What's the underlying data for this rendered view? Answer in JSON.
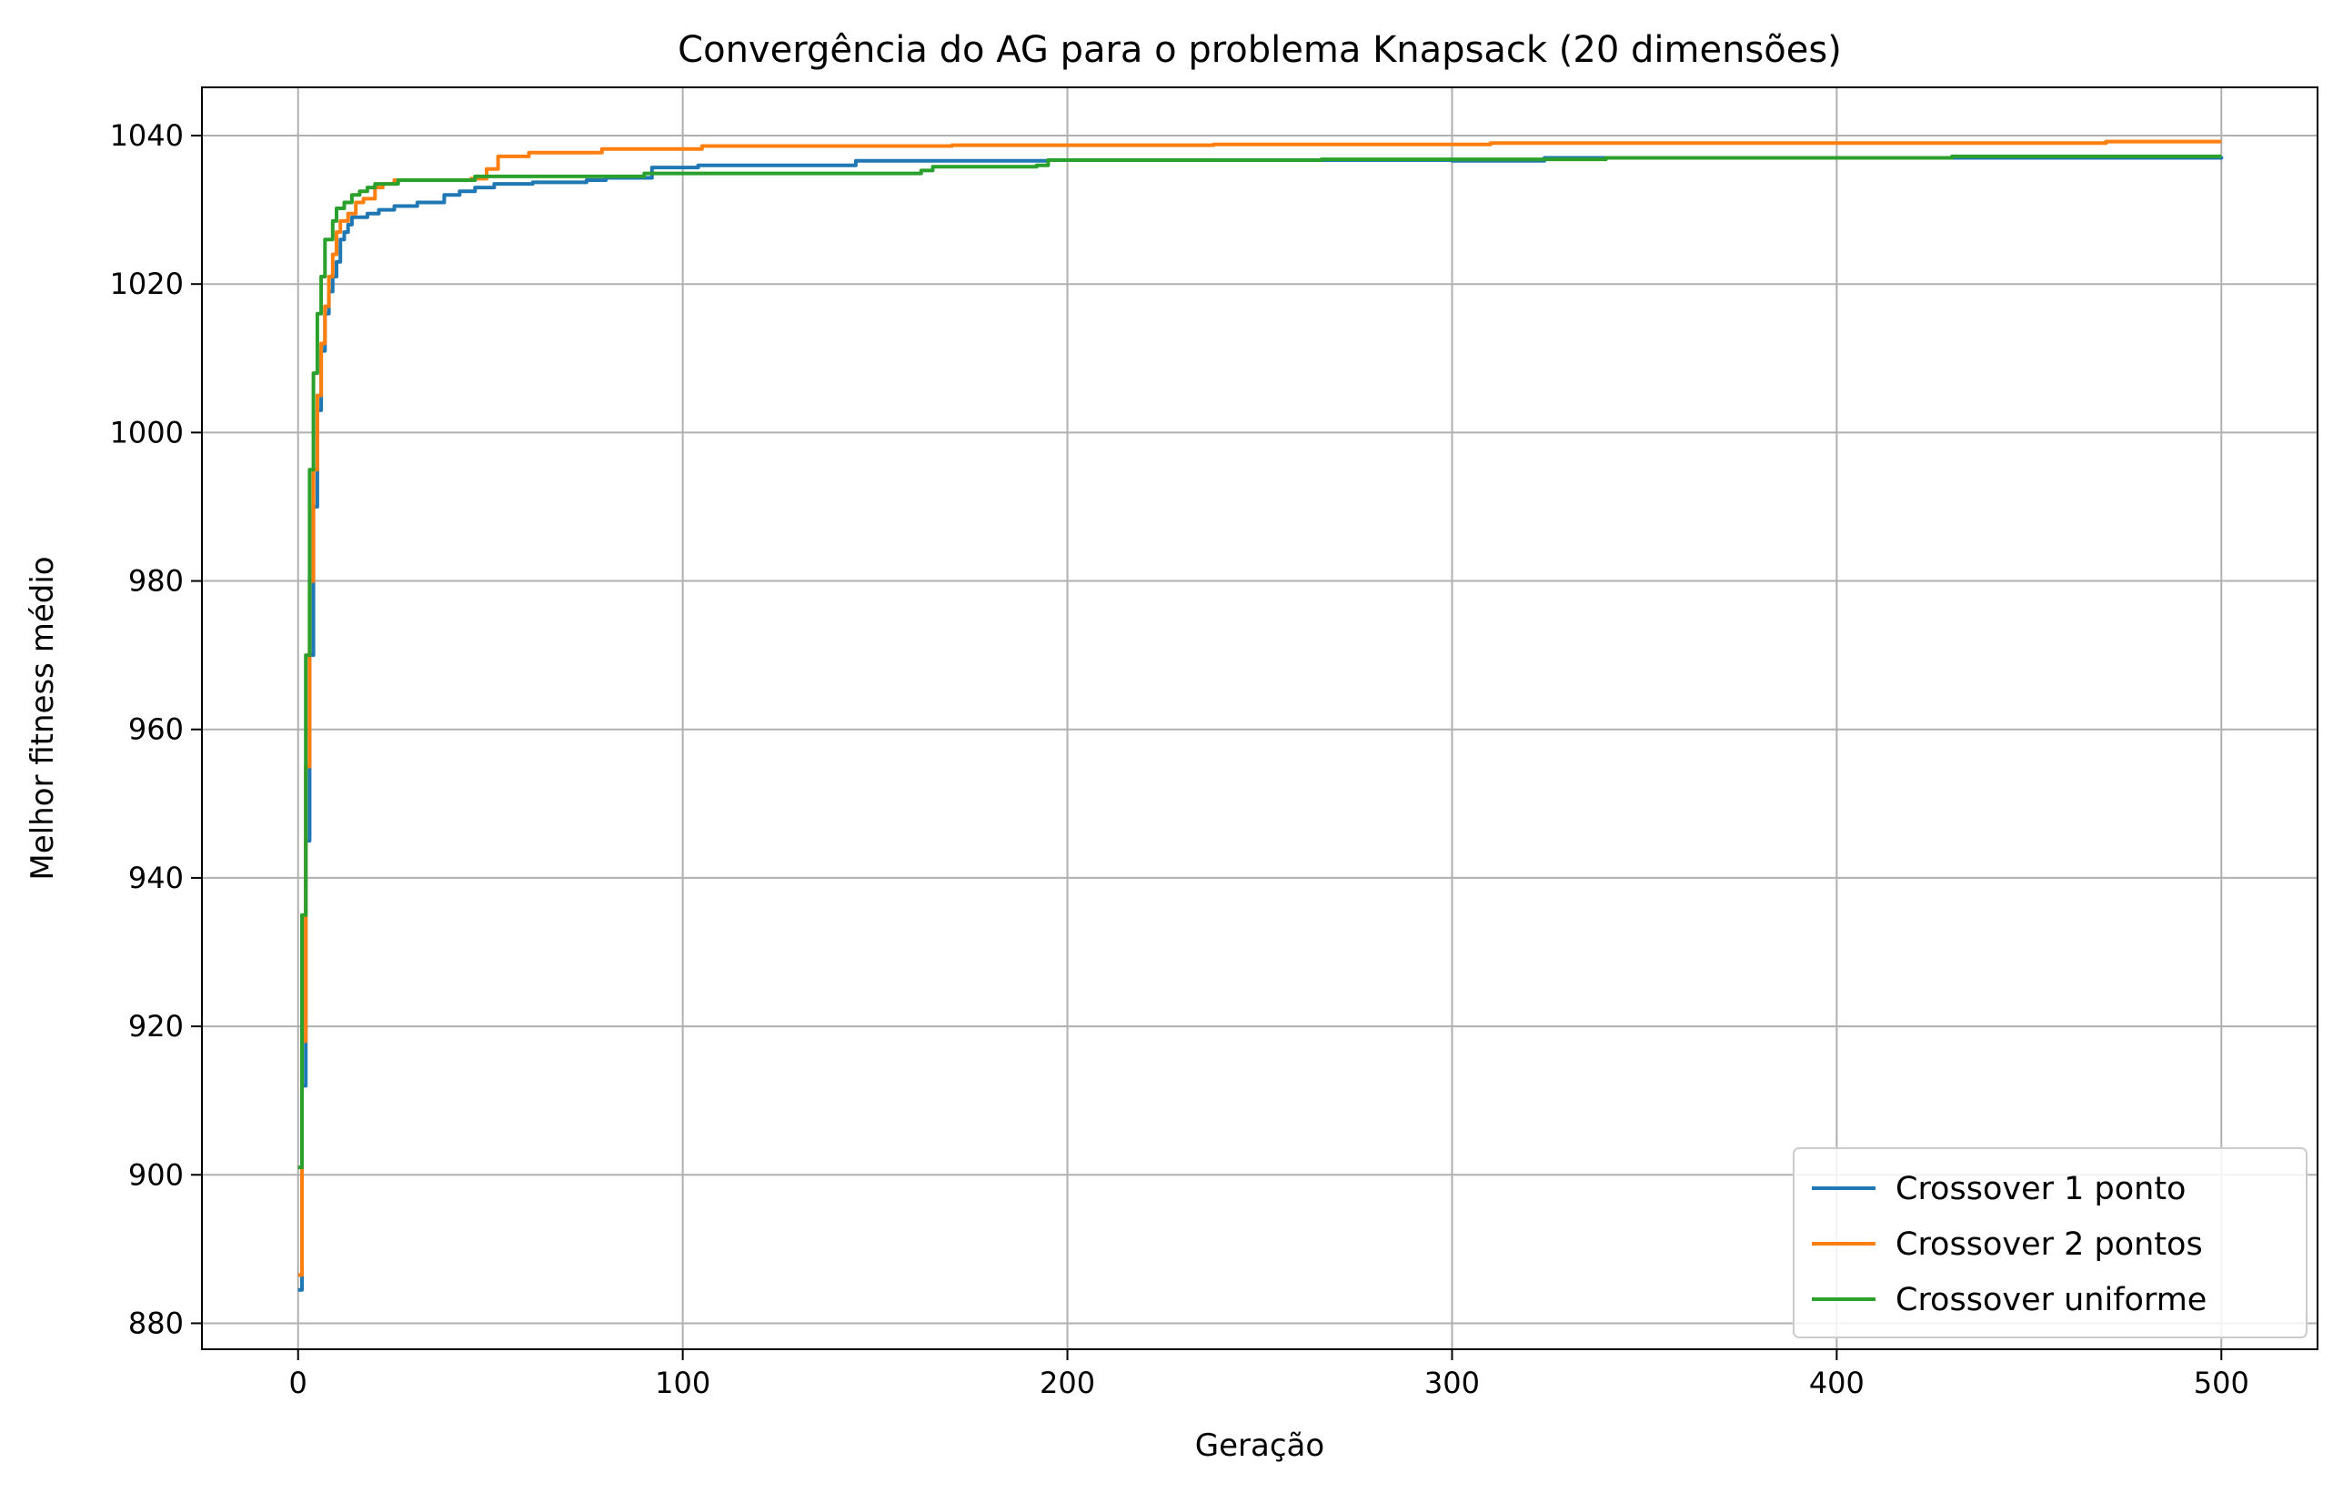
{
  "chart_data": {
    "type": "line",
    "title": "Convergência do AG para o problema Knapsack (20 dimensões)",
    "xlabel": "Geração",
    "ylabel": "Melhor fitness médio",
    "xlim": [
      -25,
      525
    ],
    "ylim": [
      876.5,
      1046.5
    ],
    "xticks": [
      0,
      100,
      200,
      300,
      400,
      500
    ],
    "yticks": [
      880,
      900,
      920,
      940,
      960,
      980,
      1000,
      1020,
      1040
    ],
    "grid": true,
    "legend_position": "bottom-right",
    "series": [
      {
        "name": "Crossover 1 ponto",
        "color": "#1f77b4",
        "points": [
          [
            0,
            884.5
          ],
          [
            1,
            912
          ],
          [
            2,
            945
          ],
          [
            3,
            970
          ],
          [
            4,
            990
          ],
          [
            5,
            1003
          ],
          [
            6,
            1011
          ],
          [
            7,
            1016
          ],
          [
            8,
            1019
          ],
          [
            9,
            1021
          ],
          [
            10,
            1023
          ],
          [
            11,
            1026
          ],
          [
            12,
            1027
          ],
          [
            13,
            1028
          ],
          [
            14,
            1029
          ],
          [
            18,
            1029.5
          ],
          [
            21,
            1030
          ],
          [
            25,
            1030.5
          ],
          [
            31,
            1031
          ],
          [
            38,
            1032
          ],
          [
            42,
            1032.5
          ],
          [
            46,
            1033
          ],
          [
            51,
            1033.5
          ],
          [
            61,
            1033.7
          ],
          [
            75,
            1034
          ],
          [
            80,
            1034.3
          ],
          [
            92,
            1035.7
          ],
          [
            104,
            1036
          ],
          [
            145,
            1036.6
          ],
          [
            195,
            1036.7
          ],
          [
            268,
            1036.7
          ],
          [
            300,
            1036.6
          ],
          [
            323,
            1036.6
          ],
          [
            324,
            1037
          ],
          [
            500,
            1037.2
          ]
        ]
      },
      {
        "name": "Crossover 2 pontos",
        "color": "#ff7f0e",
        "points": [
          [
            0,
            886.5
          ],
          [
            1,
            918
          ],
          [
            2,
            955
          ],
          [
            3,
            980
          ],
          [
            4,
            995
          ],
          [
            5,
            1005
          ],
          [
            6,
            1012
          ],
          [
            7,
            1017
          ],
          [
            8,
            1021
          ],
          [
            9,
            1024
          ],
          [
            10,
            1027
          ],
          [
            11,
            1028.5
          ],
          [
            13,
            1029.5
          ],
          [
            15,
            1031
          ],
          [
            17,
            1031.5
          ],
          [
            20,
            1033
          ],
          [
            22,
            1033.5
          ],
          [
            25,
            1034
          ],
          [
            45,
            1034.2
          ],
          [
            49,
            1035.5
          ],
          [
            52,
            1037.2
          ],
          [
            60,
            1037.7
          ],
          [
            79,
            1038.2
          ],
          [
            105,
            1038.6
          ],
          [
            170,
            1038.7
          ],
          [
            238,
            1038.8
          ],
          [
            310,
            1039
          ],
          [
            470,
            1039.2
          ],
          [
            500,
            1039.2
          ]
        ]
      },
      {
        "name": "Crossover uniforme",
        "color": "#2ca02c",
        "points": [
          [
            0,
            901
          ],
          [
            1,
            935
          ],
          [
            2,
            970
          ],
          [
            3,
            995
          ],
          [
            4,
            1008
          ],
          [
            5,
            1016
          ],
          [
            6,
            1021
          ],
          [
            7,
            1026
          ],
          [
            9,
            1028.5
          ],
          [
            10,
            1030.2
          ],
          [
            12,
            1031
          ],
          [
            14,
            1032
          ],
          [
            16,
            1032.5
          ],
          [
            18,
            1033
          ],
          [
            20,
            1033.5
          ],
          [
            26,
            1034
          ],
          [
            46,
            1034.5
          ],
          [
            90,
            1034.9
          ],
          [
            162,
            1035.3
          ],
          [
            165,
            1035.8
          ],
          [
            192,
            1036
          ],
          [
            195,
            1036.7
          ],
          [
            266,
            1036.8
          ],
          [
            340,
            1037
          ],
          [
            430,
            1037.2
          ],
          [
            500,
            1037.2
          ]
        ]
      }
    ]
  }
}
